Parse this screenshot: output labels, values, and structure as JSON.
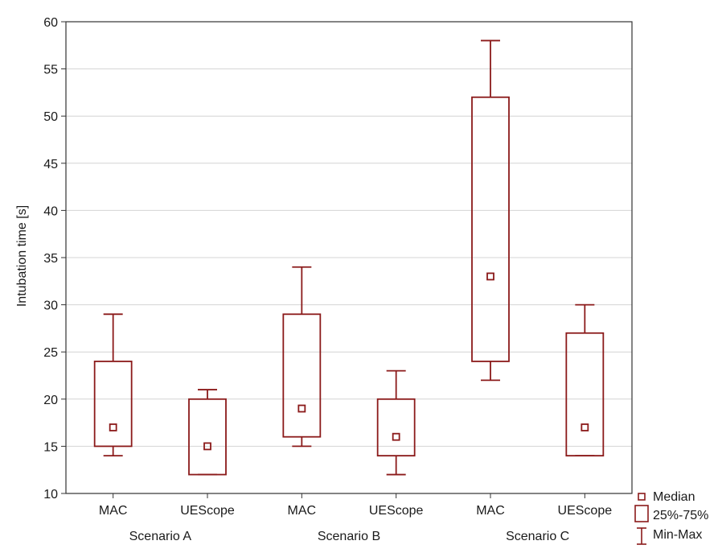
{
  "chart_data": {
    "type": "boxplot",
    "ylabel": "Intubation time [s]",
    "xlabel": "",
    "ylim": [
      10,
      60
    ],
    "yticks": [
      10,
      15,
      20,
      25,
      30,
      35,
      40,
      45,
      50,
      55,
      60
    ],
    "grid": true,
    "legend_placement": "bottom-right",
    "colors": {
      "box": "#8b1a1a",
      "grid": "#d4d4d4",
      "axis": "#333333"
    },
    "groups": [
      "Scenario A",
      "Scenario B",
      "Scenario C"
    ],
    "boxes": [
      {
        "label": "MAC",
        "group": "Scenario A",
        "min": 14,
        "q1": 15,
        "median": 17,
        "q3": 24,
        "max": 29
      },
      {
        "label": "UEScope",
        "group": "Scenario A",
        "min": 12,
        "q1": 12,
        "median": 15,
        "q3": 20,
        "max": 21
      },
      {
        "label": "MAC",
        "group": "Scenario B",
        "min": 15,
        "q1": 16,
        "median": 19,
        "q3": 29,
        "max": 34
      },
      {
        "label": "UEScope",
        "group": "Scenario B",
        "min": 12,
        "q1": 14,
        "median": 16,
        "q3": 20,
        "max": 23
      },
      {
        "label": "MAC",
        "group": "Scenario C",
        "min": 22,
        "q1": 24,
        "median": 33,
        "q3": 52,
        "max": 58
      },
      {
        "label": "UEScope",
        "group": "Scenario C",
        "min": 14,
        "q1": 14,
        "median": 17,
        "q3": 27,
        "max": 30
      }
    ],
    "legend": [
      {
        "symbol": "median-marker",
        "label": "Median"
      },
      {
        "symbol": "box",
        "label": "25%-75%"
      },
      {
        "symbol": "whisker",
        "label": "Min-Max"
      }
    ]
  }
}
